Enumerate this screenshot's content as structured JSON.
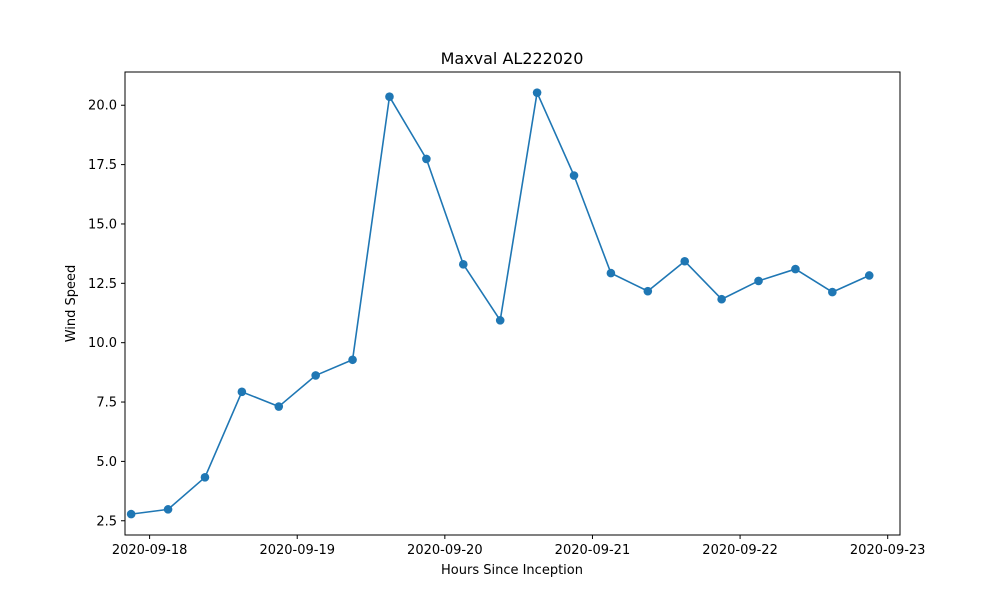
{
  "colors": {
    "series": "#1f77b4",
    "axes": "#000000",
    "background": "#ffffff"
  },
  "chart_data": {
    "type": "line",
    "title": "Maxval AL222020",
    "xlabel": "Hours Since Inception",
    "ylabel": "Wind Speed",
    "x_is_date": true,
    "xlim": [
      "2020-09-17 20:00",
      "2020-09-23 02:00"
    ],
    "ylim": [
      1.9,
      21.4
    ],
    "xticks": [
      "2020-09-18",
      "2020-09-19",
      "2020-09-20",
      "2020-09-21",
      "2020-09-22",
      "2020-09-23"
    ],
    "yticks": [
      "2.5",
      "5.0",
      "7.5",
      "10.0",
      "12.5",
      "15.0",
      "17.5",
      "20.0"
    ],
    "grid": false,
    "legend": "none",
    "marker": "circle",
    "series": [
      {
        "x": [
          "2020-09-17 21:00",
          "2020-09-18 03:00",
          "2020-09-18 09:00",
          "2020-09-18 15:00",
          "2020-09-18 21:00",
          "2020-09-19 03:00",
          "2020-09-19 09:00",
          "2020-09-19 15:00",
          "2020-09-19 21:00",
          "2020-09-20 03:00",
          "2020-09-20 09:00",
          "2020-09-20 15:00",
          "2020-09-20 21:00",
          "2020-09-21 03:00",
          "2020-09-21 09:00",
          "2020-09-21 15:00",
          "2020-09-21 21:00",
          "2020-09-22 03:00",
          "2020-09-22 09:00",
          "2020-09-22 15:00",
          "2020-09-22 21:00"
        ],
        "values": [
          2.78,
          2.98,
          4.33,
          7.93,
          7.31,
          8.62,
          9.28,
          20.36,
          17.74,
          13.3,
          10.94,
          20.53,
          17.04,
          12.93,
          12.17,
          13.43,
          11.83,
          12.6,
          13.1,
          12.13,
          12.83
        ]
      }
    ]
  }
}
